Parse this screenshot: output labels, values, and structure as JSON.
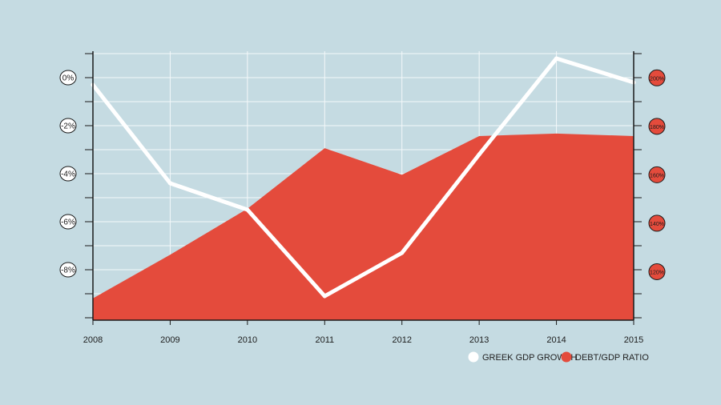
{
  "chart_data": {
    "type": "area",
    "categories": [
      "2008",
      "2009",
      "2010",
      "2011",
      "2012",
      "2013",
      "2014",
      "2015"
    ],
    "series": [
      {
        "name": "DEBT/GDP RATIO",
        "axis": "right",
        "style": "area",
        "color": "#e44b3c",
        "values": [
          109,
          127,
          146,
          171,
          160,
          176,
          177,
          176
        ]
      },
      {
        "name": "GREEK GDP GROWTH",
        "axis": "left",
        "style": "line",
        "color": "#ffffff",
        "values": [
          -0.3,
          -4.4,
          -5.5,
          -9.1,
          -7.3,
          -3.2,
          0.8,
          -0.2
        ]
      }
    ],
    "y_left": {
      "ticks": [
        0,
        -2,
        -4,
        -6,
        -8
      ],
      "tick_labels": [
        "0%",
        "-2%",
        "-4%",
        "-6%",
        "-8%"
      ],
      "ylim": [
        -10.1,
        1.1
      ]
    },
    "y_right": {
      "ticks": [
        200,
        180,
        160,
        140,
        120
      ],
      "tick_labels": [
        "200%",
        "180%",
        "160%",
        "140%",
        "120%"
      ],
      "ylim": [
        100,
        211
      ],
      "tick_fill": "#e44b3c"
    },
    "grid": true,
    "legend_position": "bottom-right",
    "background": "#c5dbe2"
  }
}
